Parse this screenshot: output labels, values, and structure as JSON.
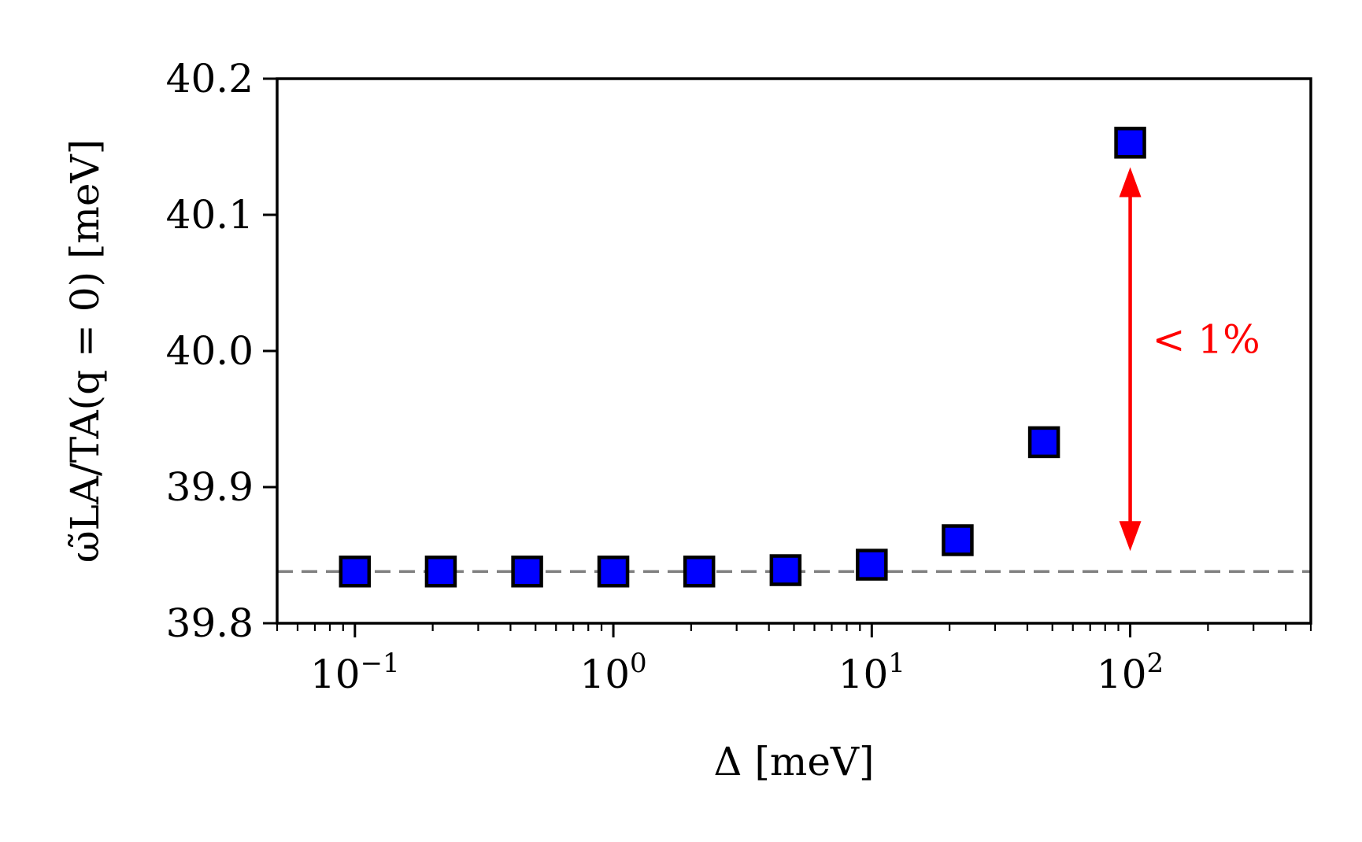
{
  "chart_data": {
    "type": "scatter",
    "x_scale": "log",
    "xlim": [
      0.05,
      500
    ],
    "ylim": [
      39.8,
      40.2
    ],
    "xlabel": "Δ [meV]",
    "ylabel": "ω̃LA/TA(q = 0) [meV]",
    "x_tick_labels": [
      {
        "x": 0.1,
        "base": "10",
        "exp": "−1"
      },
      {
        "x": 1,
        "base": "10",
        "exp": "0"
      },
      {
        "x": 10,
        "base": "10",
        "exp": "1"
      },
      {
        "x": 100,
        "base": "10",
        "exp": "2"
      }
    ],
    "y_tick_labels": [
      {
        "y": 39.8,
        "label": "39.8"
      },
      {
        "y": 39.9,
        "label": "39.9"
      },
      {
        "y": 40.0,
        "label": "40.0"
      },
      {
        "y": 40.1,
        "label": "40.1"
      },
      {
        "y": 40.2,
        "label": "40.2"
      }
    ],
    "grid": false,
    "series": [
      {
        "marker": "square",
        "color": "#0000ff",
        "edge_color": "#000000",
        "points": [
          {
            "x": 0.1,
            "y": 39.838
          },
          {
            "x": 0.215,
            "y": 39.838
          },
          {
            "x": 0.464,
            "y": 39.838
          },
          {
            "x": 1.0,
            "y": 39.838
          },
          {
            "x": 2.15,
            "y": 39.838
          },
          {
            "x": 4.64,
            "y": 39.839
          },
          {
            "x": 10.0,
            "y": 39.843
          },
          {
            "x": 21.5,
            "y": 39.861
          },
          {
            "x": 46.4,
            "y": 39.933
          },
          {
            "x": 100.0,
            "y": 40.153
          }
        ]
      }
    ],
    "reference_line": {
      "y": 39.838,
      "style": "dashed",
      "color": "#808080"
    },
    "annotation": {
      "text": "< 1%",
      "color": "#ff0000",
      "arrow_x": 100,
      "arrow_y_from": 39.853,
      "arrow_y_to": 40.135
    }
  }
}
